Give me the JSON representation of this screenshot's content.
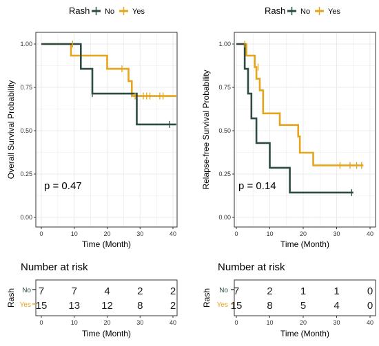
{
  "colors": {
    "no": "#2b4b44",
    "yes": "#e6a41a",
    "grid": "#ebebeb",
    "axis": "#333333"
  },
  "legend": {
    "title": "Rash",
    "entries": [
      "No",
      "Yes"
    ]
  },
  "risk_title": "Number at risk",
  "risk_ylabel": "Rash",
  "chart_data": [
    {
      "type": "line",
      "subtype": "kaplan-meier",
      "xlabel": "Time (Month)",
      "ylabel": "Overall Survival Probability",
      "xlim": [
        0,
        40
      ],
      "ylim": [
        0,
        1
      ],
      "xticks": [
        0,
        10,
        20,
        30,
        40
      ],
      "yticks": [
        "0.00",
        "0.25",
        "0.50",
        "0.75",
        "1.00"
      ],
      "annotation": "p = 0.47",
      "legend_position": "top",
      "grid": true,
      "series": [
        {
          "name": "No",
          "steps": [
            [
              0,
              1.0
            ],
            [
              12,
              0.857
            ],
            [
              15.5,
              0.714
            ],
            [
              29,
              0.536
            ],
            [
              41,
              0.536
            ]
          ],
          "censors": [
            [
              15.5,
              0.714
            ],
            [
              39,
              0.536
            ]
          ]
        },
        {
          "name": "Yes",
          "steps": [
            [
              0,
              1.0
            ],
            [
              9,
              0.933
            ],
            [
              20,
              0.857
            ],
            [
              26.5,
              0.786
            ],
            [
              27.5,
              0.7
            ],
            [
              41,
              0.7
            ]
          ],
          "censors": [
            [
              9.5,
              1.0
            ],
            [
              24.5,
              0.857
            ],
            [
              28.5,
              0.7
            ],
            [
              31,
              0.7
            ],
            [
              32,
              0.7
            ],
            [
              33,
              0.7
            ],
            [
              36,
              0.7
            ],
            [
              37,
              0.7
            ]
          ]
        }
      ],
      "risk_table": {
        "xticks": [
          0,
          10,
          20,
          30,
          40
        ],
        "rows": [
          {
            "name": "No",
            "values": [
              "7",
              "7",
              "4",
              "2",
              "2"
            ]
          },
          {
            "name": "Yes",
            "values": [
              "15",
              "13",
              "12",
              "8",
              "2"
            ]
          }
        ]
      }
    },
    {
      "type": "line",
      "subtype": "kaplan-meier",
      "xlabel": "Time (Month)",
      "ylabel": "Relapse-free Survival Probability",
      "xlim": [
        0,
        40
      ],
      "ylim": [
        0,
        1
      ],
      "xticks": [
        0,
        10,
        20,
        30,
        40
      ],
      "yticks": [
        "0.00",
        "0.25",
        "0.50",
        "0.75",
        "1.00"
      ],
      "annotation": "p = 0.14",
      "legend_position": "top",
      "grid": true,
      "series": [
        {
          "name": "No",
          "steps": [
            [
              0,
              1.0
            ],
            [
              2.5,
              0.857
            ],
            [
              3.5,
              0.714
            ],
            [
              4.5,
              0.571
            ],
            [
              6,
              0.429
            ],
            [
              10,
              0.286
            ],
            [
              16,
              0.143
            ],
            [
              35,
              0.143
            ]
          ],
          "censors": [
            [
              34.5,
              0.143
            ]
          ]
        },
        {
          "name": "Yes",
          "steps": [
            [
              0,
              1.0
            ],
            [
              3,
              0.933
            ],
            [
              5.5,
              0.867
            ],
            [
              6,
              0.8
            ],
            [
              7,
              0.733
            ],
            [
              8,
              0.6
            ],
            [
              13,
              0.533
            ],
            [
              18.5,
              0.467
            ],
            [
              19,
              0.373
            ],
            [
              23,
              0.3
            ],
            [
              38,
              0.3
            ]
          ],
          "censors": [
            [
              2.5,
              1.0
            ],
            [
              6.5,
              0.867
            ],
            [
              31,
              0.3
            ],
            [
              34,
              0.3
            ],
            [
              36,
              0.3
            ],
            [
              37.5,
              0.3
            ]
          ]
        }
      ],
      "risk_table": {
        "xticks": [
          0,
          10,
          20,
          30,
          40
        ],
        "rows": [
          {
            "name": "No",
            "values": [
              "7",
              "2",
              "1",
              "1",
              "0"
            ]
          },
          {
            "name": "Yes",
            "values": [
              "15",
              "8",
              "5",
              "4",
              "0"
            ]
          }
        ]
      }
    }
  ]
}
